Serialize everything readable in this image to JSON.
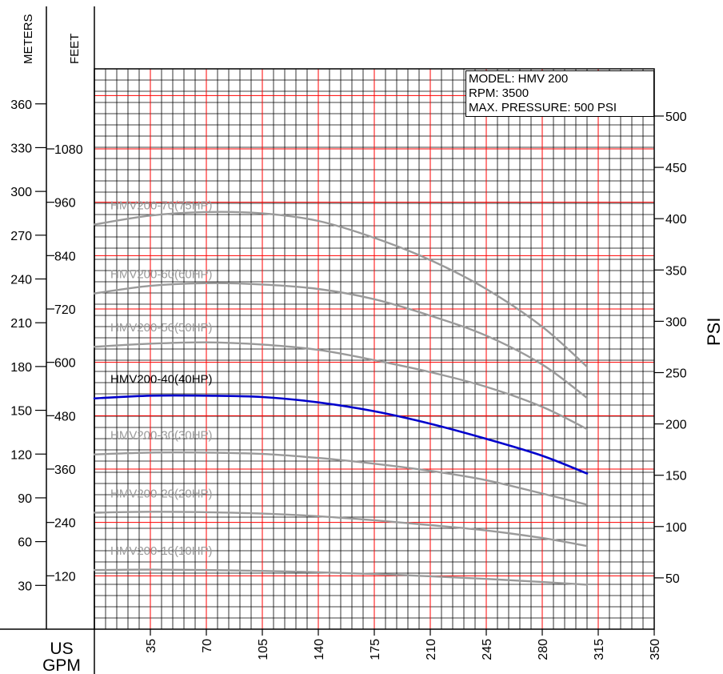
{
  "info": {
    "model": "MODEL: HMV 200",
    "rpm": "RPM: 3500",
    "max_pressure": "MAX. PRESSURE: 500 PSI"
  },
  "axes": {
    "meters_title": "METERS",
    "feet_title": "FEET",
    "psi_title": "PSI",
    "x_title_line1": "US",
    "x_title_line2": "GPM"
  },
  "colors": {
    "grid_minor": "#000000",
    "grid_major": "#ff0000",
    "curve_gray": "#9a9a9a",
    "curve_highlight": "#0000cc"
  },
  "chart_data": {
    "type": "line",
    "x_unit": "US GPM",
    "y_unit": "FEET",
    "xlim": [
      0,
      350
    ],
    "ylim_feet": [
      0,
      1260
    ],
    "ylim_meters": [
      0,
      384
    ],
    "ylim_psi": [
      0,
      546
    ],
    "x_ticks": [
      35,
      70,
      105,
      140,
      175,
      210,
      245,
      280,
      315,
      350
    ],
    "feet_ticks": [
      120,
      240,
      360,
      480,
      600,
      720,
      840,
      960,
      1080
    ],
    "meter_ticks": [
      30,
      60,
      90,
      120,
      150,
      180,
      210,
      240,
      270,
      300,
      330,
      360
    ],
    "psi_ticks": [
      50,
      100,
      150,
      200,
      250,
      300,
      350,
      400,
      450,
      500
    ],
    "x": [
      0,
      35,
      70,
      105,
      140,
      175,
      210,
      245,
      280,
      308
    ],
    "series": [
      {
        "name": "HMV200-70(75HP)",
        "highlight": false,
        "values": [
          910,
          930,
          938,
          935,
          918,
          880,
          830,
          765,
          680,
          590
        ]
      },
      {
        "name": "HMV200-60(60HP)",
        "highlight": false,
        "values": [
          755,
          772,
          778,
          775,
          765,
          742,
          705,
          660,
          595,
          520
        ]
      },
      {
        "name": "HMV200-50(50HP)",
        "highlight": false,
        "values": [
          635,
          642,
          645,
          640,
          628,
          605,
          578,
          545,
          500,
          450
        ]
      },
      {
        "name": "HMV200-40(40HP)",
        "highlight": true,
        "values": [
          519,
          525,
          525,
          522,
          510,
          490,
          462,
          428,
          390,
          350
        ]
      },
      {
        "name": "HMV200-30(30HP)",
        "highlight": false,
        "values": [
          393,
          397,
          397,
          394,
          385,
          372,
          356,
          335,
          305,
          280
        ]
      },
      {
        "name": "HMV200-20(20HP)",
        "highlight": false,
        "values": [
          262,
          264,
          263,
          260,
          254,
          245,
          234,
          222,
          205,
          187
        ]
      },
      {
        "name": "HMV200-10(10HP)",
        "highlight": false,
        "values": [
          133,
          134,
          133,
          131,
          128,
          124,
          119,
          113,
          106,
          100
        ]
      }
    ]
  }
}
